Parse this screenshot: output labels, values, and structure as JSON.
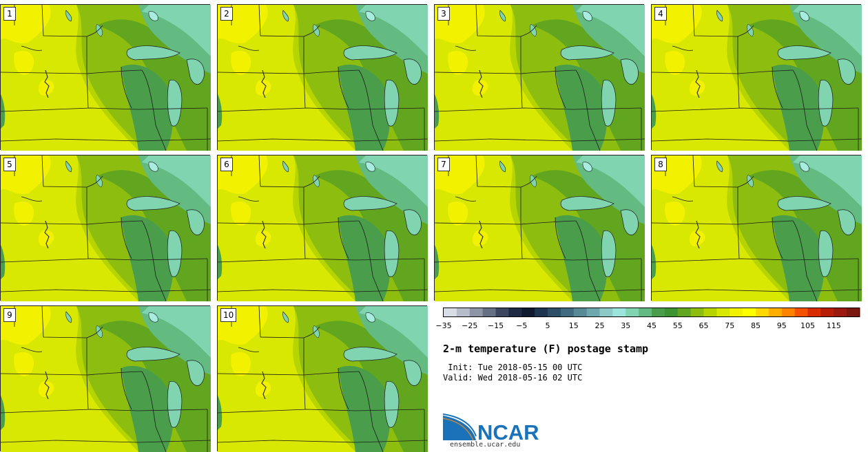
{
  "title": "2-m temperature (F) postage stamp",
  "init": " Init: Tue 2018-05-15 00 UTC",
  "valid": "Valid: Wed 2018-05-16 02 UTC",
  "members": [
    "1",
    "2",
    "3",
    "4",
    "5",
    "6",
    "7",
    "8",
    "9",
    "10"
  ],
  "colorbar": {
    "ticks": [
      "−35",
      "−25",
      "−15",
      "−5",
      "5",
      "15",
      "25",
      "35",
      "45",
      "55",
      "65",
      "75",
      "85",
      "95",
      "105",
      "115"
    ],
    "colors": [
      "#d9dde6",
      "#b6bcca",
      "#8d95a7",
      "#667085",
      "#3c465e",
      "#1e2a44",
      "#0f1a30",
      "#1e3550",
      "#2e4d66",
      "#3f6a7f",
      "#578a96",
      "#6fa7ae",
      "#8cc9c7",
      "#9be5dd",
      "#80d4b0",
      "#63bb82",
      "#4a9e4b",
      "#3e9232",
      "#62a51f",
      "#8dbd0f",
      "#b5d400",
      "#d8e800",
      "#f2f200",
      "#ffff00",
      "#ffd800",
      "#ffae00",
      "#ff8200",
      "#f55200",
      "#d92b00",
      "#b81d08",
      "#9a1a10",
      "#7a1810"
    ]
  },
  "logo": {
    "text": "NCAR",
    "url": "ensemble.ucar.edu",
    "blue": "#1a73b8"
  },
  "map_colors": {
    "warm": "#f2f200",
    "yellow": "#d8e800",
    "green1": "#b5d400",
    "green2": "#8dbd0f",
    "green3": "#62a51f",
    "green4": "#4a9e4b",
    "teal": "#63bb82",
    "lake": "#80d4b0",
    "outline": "#1a1a1a"
  }
}
